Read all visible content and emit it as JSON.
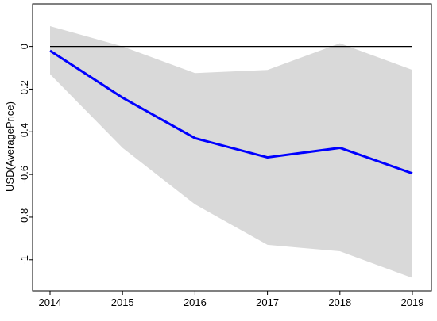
{
  "chart_data": {
    "type": "line",
    "title": "",
    "xlabel": "",
    "ylabel": "USD(AveragePrice)",
    "x": [
      2014,
      2015,
      2016,
      2017,
      2018,
      2019
    ],
    "xticks": [
      "2014",
      "2015",
      "2016",
      "2017",
      "2018",
      "2019"
    ],
    "yticks": [
      0,
      -0.2,
      -0.4,
      -0.6,
      -0.8,
      -1
    ],
    "yticklabels": [
      "0",
      "-0.2",
      "-0.4",
      "-0.6",
      "-0.8",
      "-1"
    ],
    "xlim": [
      2014,
      2019
    ],
    "ylim": [
      -1.09,
      0.11
    ],
    "grid": false,
    "reference_line": 0,
    "series": [
      {
        "values": [
          -0.02,
          -0.24,
          -0.43,
          -0.52,
          -0.475,
          -0.595
        ],
        "color": "#0000ff"
      }
    ],
    "band": {
      "upper": [
        0.095,
        0.0,
        -0.125,
        -0.11,
        0.015,
        -0.11
      ],
      "lower": [
        -0.13,
        -0.475,
        -0.74,
        -0.93,
        -0.96,
        -1.085
      ],
      "color": "#d9d9d9"
    }
  }
}
